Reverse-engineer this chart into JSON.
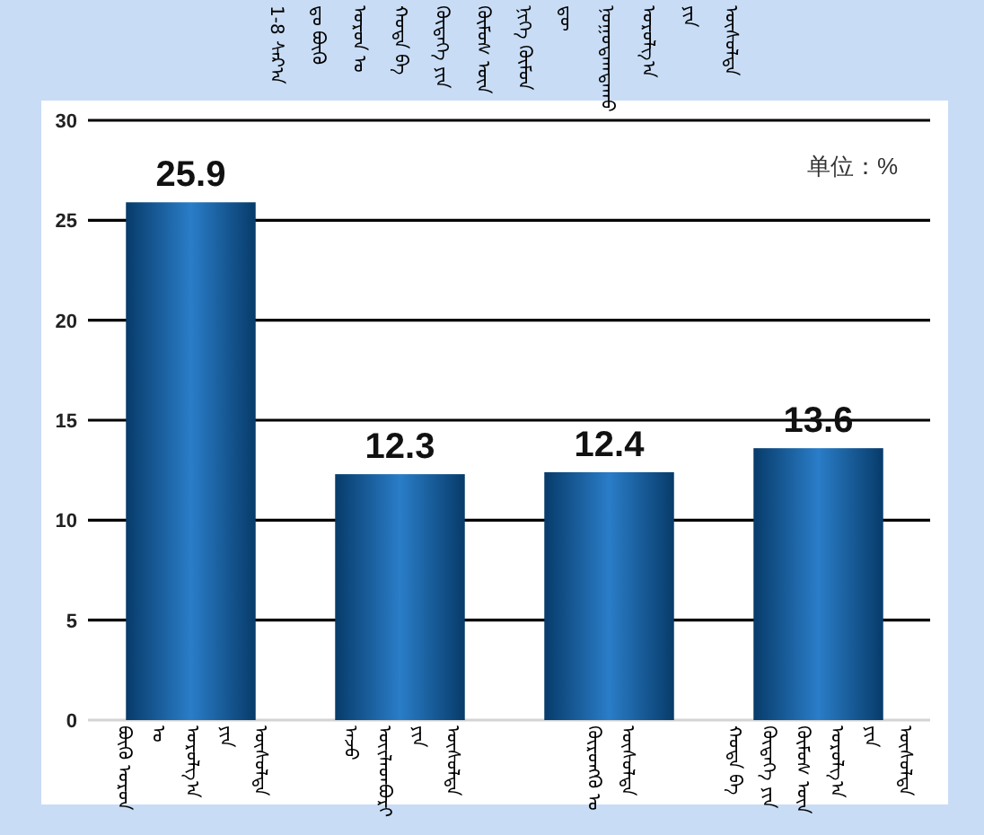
{
  "chart_data": {
    "type": "bar",
    "title": "1-8 ᠰᠠᠷ᠎ᠠ ᠳᠤ ᠪᠦᠬᠦ ᠣᠷᠣᠨ ᠤ ᠬᠣᠲᠠ ᠪᠠ ᠬᠥᠳᠡᠭᠡ ᠶᠢᠨ ᠬᠦᠮᠦᠰ ᠦᠨ ᠨᠢᠭᠡ ᠬᠦᠮᠦᠨ ᠳᠦ ᠨᠣᠭᠣᠳᠠᠭᠳᠠᠬᠤ ᠣᠷᠣᠯᠭ᠎ᠠ ᠶᠢᠨ ᠥᠰᠦᠯᠲᠡ",
    "categories": [
      "ᠪᠦᠬᠦ ᠣᠷᠣᠨ ᠤ ᠣᠷᠣᠯᠭ᠎ᠠ ᠶᠢᠨ ᠥᠰᠦᠯᠲᠡ",
      "ᠠᠵᠤ ᠦᠢᠯᠡᠳᠪᠦᠷᠢ ᠶᠢᠨ ᠥᠰᠦᠯᠲᠡ",
      "ᠬᠥᠷᠥᠩᠭᠦ ᠤ ᠥᠰᠦᠯᠲᠡ",
      "ᠬᠣᠲᠠ ᠪᠠ ᠬᠥᠳᠡᠭᠡ ᠶᠢᠨ ᠬᠦᠮᠦᠰ ᠦᠨ ᠣᠷᠣᠯᠭ᠎ᠠ ᠶᠢᠨ ᠥᠰᠦᠯᠲᠡ"
    ],
    "values": [
      25.9,
      12.3,
      12.4,
      13.6
    ],
    "color": "#0d6bc0",
    "ylim": [
      0,
      30
    ],
    "yticks": [
      0,
      5,
      10,
      15,
      20,
      25,
      30
    ],
    "grid": "y",
    "data_labels": true,
    "annotations": [
      "单位：%"
    ]
  }
}
